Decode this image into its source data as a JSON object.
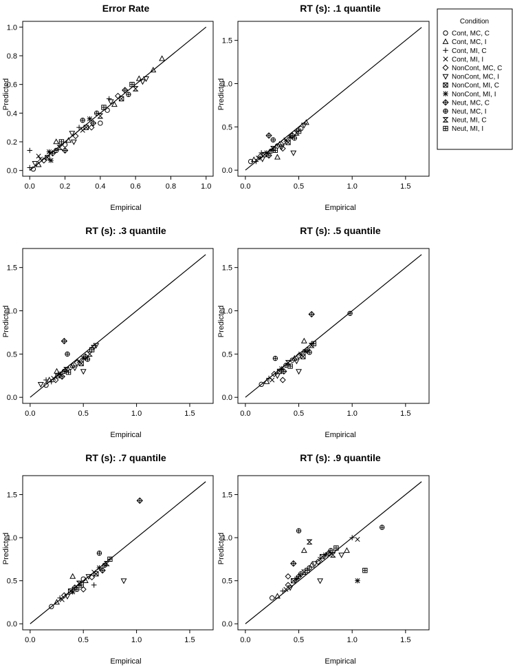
{
  "chart_data": [
    {
      "type": "scatter",
      "title": "Error Rate",
      "xlabel": "Empirical",
      "ylabel": "Predicted",
      "xlim": [
        -0.04,
        1.04
      ],
      "ylim": [
        -0.04,
        1.04
      ],
      "ticks": [
        0.0,
        0.2,
        0.4,
        0.6,
        0.8,
        1.0
      ],
      "tick_labels": [
        "0.0",
        "0.2",
        "0.4",
        "0.6",
        "0.8",
        "1.0"
      ],
      "reference_line": [
        [
          0,
          0
        ],
        [
          1.0,
          1.0
        ]
      ],
      "grid": false,
      "points": [
        [
          0.0,
          0.02,
          2
        ],
        [
          0.02,
          0.01,
          0
        ],
        [
          0.03,
          0.05,
          5
        ],
        [
          0.05,
          0.04,
          1
        ],
        [
          0.06,
          0.08,
          3
        ],
        [
          0.08,
          0.07,
          4
        ],
        [
          0.1,
          0.09,
          6
        ],
        [
          0.11,
          0.13,
          7
        ],
        [
          0.13,
          0.12,
          8
        ],
        [
          0.15,
          0.14,
          9
        ],
        [
          0.17,
          0.16,
          10
        ],
        [
          0.18,
          0.2,
          11
        ],
        [
          0.2,
          0.18,
          0
        ],
        [
          0.22,
          0.21,
          1
        ],
        [
          0.24,
          0.26,
          5
        ],
        [
          0.26,
          0.24,
          4
        ],
        [
          0.28,
          0.3,
          2
        ],
        [
          0.3,
          0.28,
          3
        ],
        [
          0.32,
          0.3,
          6
        ],
        [
          0.34,
          0.36,
          7
        ],
        [
          0.36,
          0.33,
          8
        ],
        [
          0.38,
          0.4,
          9
        ],
        [
          0.4,
          0.38,
          10
        ],
        [
          0.42,
          0.44,
          11
        ],
        [
          0.44,
          0.42,
          0
        ],
        [
          0.46,
          0.48,
          5
        ],
        [
          0.48,
          0.46,
          1
        ],
        [
          0.5,
          0.52,
          4
        ],
        [
          0.52,
          0.5,
          6
        ],
        [
          0.54,
          0.56,
          8
        ],
        [
          0.56,
          0.53,
          9
        ],
        [
          0.58,
          0.6,
          11
        ],
        [
          0.6,
          0.57,
          10
        ],
        [
          0.62,
          0.64,
          1
        ],
        [
          0.64,
          0.62,
          5
        ],
        [
          0.66,
          0.64,
          5
        ],
        [
          0.7,
          0.7,
          1
        ],
        [
          0.75,
          0.78,
          1
        ],
        [
          0.0,
          0.14,
          2
        ],
        [
          0.05,
          0.1,
          3
        ],
        [
          0.12,
          0.07,
          7
        ],
        [
          0.2,
          0.14,
          8
        ],
        [
          0.3,
          0.35,
          9
        ],
        [
          0.4,
          0.33,
          0
        ],
        [
          0.25,
          0.2,
          5
        ],
        [
          0.15,
          0.2,
          1
        ],
        [
          0.35,
          0.3,
          4
        ],
        [
          0.45,
          0.5,
          2
        ]
      ]
    },
    {
      "type": "scatter",
      "title": "RT (s): .1 quantile",
      "xlabel": "Empirical",
      "ylabel": "Predicted",
      "xlim": [
        -0.07,
        1.72
      ],
      "ylim": [
        -0.07,
        1.72
      ],
      "ticks": [
        0.0,
        0.5,
        1.0,
        1.5
      ],
      "tick_labels": [
        "0.0",
        "0.5",
        "1.0",
        "1.5"
      ],
      "reference_line": [
        [
          0,
          0
        ],
        [
          1.65,
          1.65
        ]
      ],
      "grid": false,
      "points": [
        [
          0.05,
          0.1,
          0
        ],
        [
          0.08,
          0.12,
          1
        ],
        [
          0.1,
          0.1,
          2
        ],
        [
          0.12,
          0.14,
          3
        ],
        [
          0.14,
          0.16,
          4
        ],
        [
          0.16,
          0.13,
          5
        ],
        [
          0.18,
          0.18,
          6
        ],
        [
          0.2,
          0.2,
          7
        ],
        [
          0.22,
          0.17,
          8
        ],
        [
          0.24,
          0.22,
          9
        ],
        [
          0.26,
          0.25,
          10
        ],
        [
          0.28,
          0.23,
          11
        ],
        [
          0.3,
          0.28,
          0
        ],
        [
          0.32,
          0.3,
          1
        ],
        [
          0.34,
          0.27,
          5
        ],
        [
          0.36,
          0.33,
          4
        ],
        [
          0.38,
          0.35,
          3
        ],
        [
          0.4,
          0.32,
          6
        ],
        [
          0.42,
          0.38,
          7
        ],
        [
          0.44,
          0.4,
          8
        ],
        [
          0.46,
          0.37,
          9
        ],
        [
          0.48,
          0.43,
          10
        ],
        [
          0.5,
          0.45,
          11
        ],
        [
          0.52,
          0.48,
          0
        ],
        [
          0.55,
          0.52,
          5
        ],
        [
          0.57,
          0.55,
          1
        ],
        [
          0.22,
          0.4,
          8
        ],
        [
          0.26,
          0.35,
          9
        ],
        [
          0.45,
          0.2,
          5
        ],
        [
          0.3,
          0.15,
          1
        ],
        [
          0.15,
          0.2,
          2
        ],
        [
          0.35,
          0.25,
          4
        ]
      ]
    },
    {
      "type": "scatter",
      "title": "RT (s): .3 quantile",
      "xlabel": "Empirical",
      "ylabel": "Predicted",
      "xlim": [
        -0.07,
        1.72
      ],
      "ylim": [
        -0.07,
        1.72
      ],
      "ticks": [
        0.0,
        0.5,
        1.0,
        1.5
      ],
      "tick_labels": [
        "0.0",
        "0.5",
        "1.0",
        "1.5"
      ],
      "reference_line": [
        [
          0,
          0
        ],
        [
          1.65,
          1.65
        ]
      ],
      "grid": false,
      "points": [
        [
          0.1,
          0.15,
          5
        ],
        [
          0.15,
          0.14,
          0
        ],
        [
          0.18,
          0.2,
          1
        ],
        [
          0.2,
          0.18,
          2
        ],
        [
          0.22,
          0.22,
          3
        ],
        [
          0.24,
          0.2,
          4
        ],
        [
          0.26,
          0.25,
          6
        ],
        [
          0.28,
          0.27,
          7
        ],
        [
          0.3,
          0.24,
          8
        ],
        [
          0.32,
          0.3,
          9
        ],
        [
          0.34,
          0.32,
          10
        ],
        [
          0.36,
          0.29,
          11
        ],
        [
          0.38,
          0.35,
          0
        ],
        [
          0.4,
          0.37,
          1
        ],
        [
          0.42,
          0.34,
          5
        ],
        [
          0.44,
          0.4,
          4
        ],
        [
          0.46,
          0.42,
          3
        ],
        [
          0.48,
          0.39,
          6
        ],
        [
          0.5,
          0.45,
          7
        ],
        [
          0.52,
          0.47,
          8
        ],
        [
          0.54,
          0.44,
          9
        ],
        [
          0.56,
          0.5,
          10
        ],
        [
          0.58,
          0.55,
          11
        ],
        [
          0.6,
          0.58,
          5
        ],
        [
          0.62,
          0.6,
          5
        ],
        [
          0.32,
          0.65,
          8
        ],
        [
          0.35,
          0.5,
          9
        ],
        [
          0.5,
          0.3,
          5
        ],
        [
          0.25,
          0.3,
          1
        ],
        [
          0.15,
          0.2,
          2
        ]
      ]
    },
    {
      "type": "scatter",
      "title": "RT (s): .5 quantile",
      "xlabel": "Empirical",
      "ylabel": "Predicted",
      "xlim": [
        -0.07,
        1.72
      ],
      "ylim": [
        -0.07,
        1.72
      ],
      "ticks": [
        0.0,
        0.5,
        1.0,
        1.5
      ],
      "tick_labels": [
        "0.0",
        "0.5",
        "1.0",
        "1.5"
      ],
      "reference_line": [
        [
          0,
          0
        ],
        [
          1.65,
          1.65
        ]
      ],
      "grid": false,
      "points": [
        [
          0.15,
          0.15,
          0
        ],
        [
          0.2,
          0.18,
          1
        ],
        [
          0.22,
          0.22,
          2
        ],
        [
          0.25,
          0.2,
          3
        ],
        [
          0.27,
          0.27,
          4
        ],
        [
          0.3,
          0.25,
          5
        ],
        [
          0.32,
          0.3,
          6
        ],
        [
          0.34,
          0.33,
          7
        ],
        [
          0.36,
          0.3,
          8
        ],
        [
          0.38,
          0.37,
          9
        ],
        [
          0.4,
          0.4,
          10
        ],
        [
          0.42,
          0.36,
          11
        ],
        [
          0.44,
          0.43,
          0
        ],
        [
          0.46,
          0.45,
          1
        ],
        [
          0.48,
          0.42,
          5
        ],
        [
          0.5,
          0.48,
          4
        ],
        [
          0.52,
          0.5,
          3
        ],
        [
          0.54,
          0.47,
          6
        ],
        [
          0.56,
          0.53,
          7
        ],
        [
          0.58,
          0.55,
          8
        ],
        [
          0.6,
          0.52,
          9
        ],
        [
          0.62,
          0.6,
          10
        ],
        [
          0.64,
          0.62,
          11
        ],
        [
          0.62,
          0.96,
          8
        ],
        [
          0.98,
          0.97,
          9
        ],
        [
          0.28,
          0.45,
          9
        ],
        [
          0.5,
          0.3,
          5
        ],
        [
          0.35,
          0.2,
          4
        ],
        [
          0.55,
          0.65,
          1
        ]
      ]
    },
    {
      "type": "scatter",
      "title": "RT (s): .7 quantile",
      "xlabel": "Empirical",
      "ylabel": "Predicted",
      "xlim": [
        -0.07,
        1.72
      ],
      "ylim": [
        -0.07,
        1.72
      ],
      "ticks": [
        0.0,
        0.5,
        1.0,
        1.5
      ],
      "tick_labels": [
        "0.0",
        "0.5",
        "1.0",
        "1.5"
      ],
      "reference_line": [
        [
          0,
          0
        ],
        [
          1.65,
          1.65
        ]
      ],
      "grid": false,
      "points": [
        [
          0.2,
          0.2,
          0
        ],
        [
          0.25,
          0.25,
          1
        ],
        [
          0.28,
          0.3,
          2
        ],
        [
          0.3,
          0.28,
          3
        ],
        [
          0.32,
          0.33,
          4
        ],
        [
          0.35,
          0.32,
          5
        ],
        [
          0.38,
          0.38,
          6
        ],
        [
          0.4,
          0.37,
          7
        ],
        [
          0.42,
          0.42,
          8
        ],
        [
          0.44,
          0.4,
          9
        ],
        [
          0.46,
          0.47,
          10
        ],
        [
          0.48,
          0.45,
          11
        ],
        [
          0.5,
          0.52,
          0
        ],
        [
          0.52,
          0.5,
          1
        ],
        [
          0.55,
          0.55,
          5
        ],
        [
          0.58,
          0.54,
          4
        ],
        [
          0.6,
          0.6,
          3
        ],
        [
          0.62,
          0.58,
          6
        ],
        [
          0.65,
          0.65,
          7
        ],
        [
          0.68,
          0.62,
          8
        ],
        [
          0.7,
          0.68,
          9
        ],
        [
          0.72,
          0.7,
          10
        ],
        [
          0.75,
          0.75,
          11
        ],
        [
          1.03,
          1.43,
          8
        ],
        [
          0.88,
          0.5,
          5
        ],
        [
          0.65,
          0.82,
          9
        ],
        [
          0.5,
          0.4,
          4
        ],
        [
          0.4,
          0.55,
          1
        ],
        [
          0.6,
          0.45,
          2
        ]
      ]
    },
    {
      "type": "scatter",
      "title": "RT (s): .9 quantile",
      "xlabel": "Empirical",
      "ylabel": "Predicted",
      "xlim": [
        -0.07,
        1.72
      ],
      "ylim": [
        -0.07,
        1.72
      ],
      "ticks": [
        0.0,
        0.5,
        1.0,
        1.5
      ],
      "tick_labels": [
        "0.0",
        "0.5",
        "1.0",
        "1.5"
      ],
      "reference_line": [
        [
          0,
          0
        ],
        [
          1.65,
          1.65
        ]
      ],
      "grid": false,
      "points": [
        [
          0.25,
          0.3,
          0
        ],
        [
          0.3,
          0.32,
          1
        ],
        [
          0.35,
          0.38,
          2
        ],
        [
          0.38,
          0.4,
          3
        ],
        [
          0.4,
          0.45,
          4
        ],
        [
          0.42,
          0.42,
          5
        ],
        [
          0.45,
          0.5,
          6
        ],
        [
          0.48,
          0.52,
          7
        ],
        [
          0.5,
          0.55,
          8
        ],
        [
          0.52,
          0.58,
          9
        ],
        [
          0.55,
          0.6,
          10
        ],
        [
          0.58,
          0.62,
          11
        ],
        [
          0.6,
          0.65,
          0
        ],
        [
          0.62,
          0.68,
          1
        ],
        [
          0.65,
          0.7,
          5
        ],
        [
          0.68,
          0.72,
          4
        ],
        [
          0.7,
          0.75,
          3
        ],
        [
          0.72,
          0.78,
          6
        ],
        [
          0.75,
          0.8,
          7
        ],
        [
          0.78,
          0.82,
          8
        ],
        [
          0.8,
          0.85,
          9
        ],
        [
          0.82,
          0.8,
          10
        ],
        [
          0.85,
          0.88,
          11
        ],
        [
          0.9,
          0.8,
          5
        ],
        [
          0.95,
          0.85,
          1
        ],
        [
          0.5,
          1.08,
          9
        ],
        [
          1.28,
          1.12,
          9
        ],
        [
          1.05,
          0.5,
          7
        ],
        [
          1.12,
          0.62,
          11
        ],
        [
          1.0,
          1.0,
          2
        ],
        [
          1.05,
          0.98,
          3
        ],
        [
          0.45,
          0.7,
          8
        ],
        [
          0.6,
          0.95,
          10
        ],
        [
          0.7,
          0.5,
          5
        ],
        [
          0.4,
          0.55,
          4
        ],
        [
          0.55,
          0.85,
          1
        ]
      ]
    }
  ],
  "legend": {
    "title": "Condition",
    "placement": "top-right",
    "entries": [
      {
        "label": "Cont, MC, C",
        "icon": "circle-icon"
      },
      {
        "label": "Cont, MC, I",
        "icon": "triangle-up-icon"
      },
      {
        "label": "Cont, MI, C",
        "icon": "plus-icon"
      },
      {
        "label": "Cont, MI, I",
        "icon": "cross-icon"
      },
      {
        "label": "NonCont, MC, C",
        "icon": "diamond-icon"
      },
      {
        "label": "NonCont, MC, I",
        "icon": "triangle-down-icon"
      },
      {
        "label": "NonCont, MI, C",
        "icon": "square-cross-icon"
      },
      {
        "label": "NonCont, MI, I",
        "icon": "asterisk-icon"
      },
      {
        "label": "Neut, MC, C",
        "icon": "diamond-plus-icon"
      },
      {
        "label": "Neut, MC, I",
        "icon": "circle-plus-icon"
      },
      {
        "label": "Neut, MI, C",
        "icon": "hourglass-icon"
      },
      {
        "label": "Neut, MI, I",
        "icon": "square-plus-icon"
      }
    ]
  },
  "colors": {
    "ink": "#000000",
    "background": "#ffffff"
  }
}
